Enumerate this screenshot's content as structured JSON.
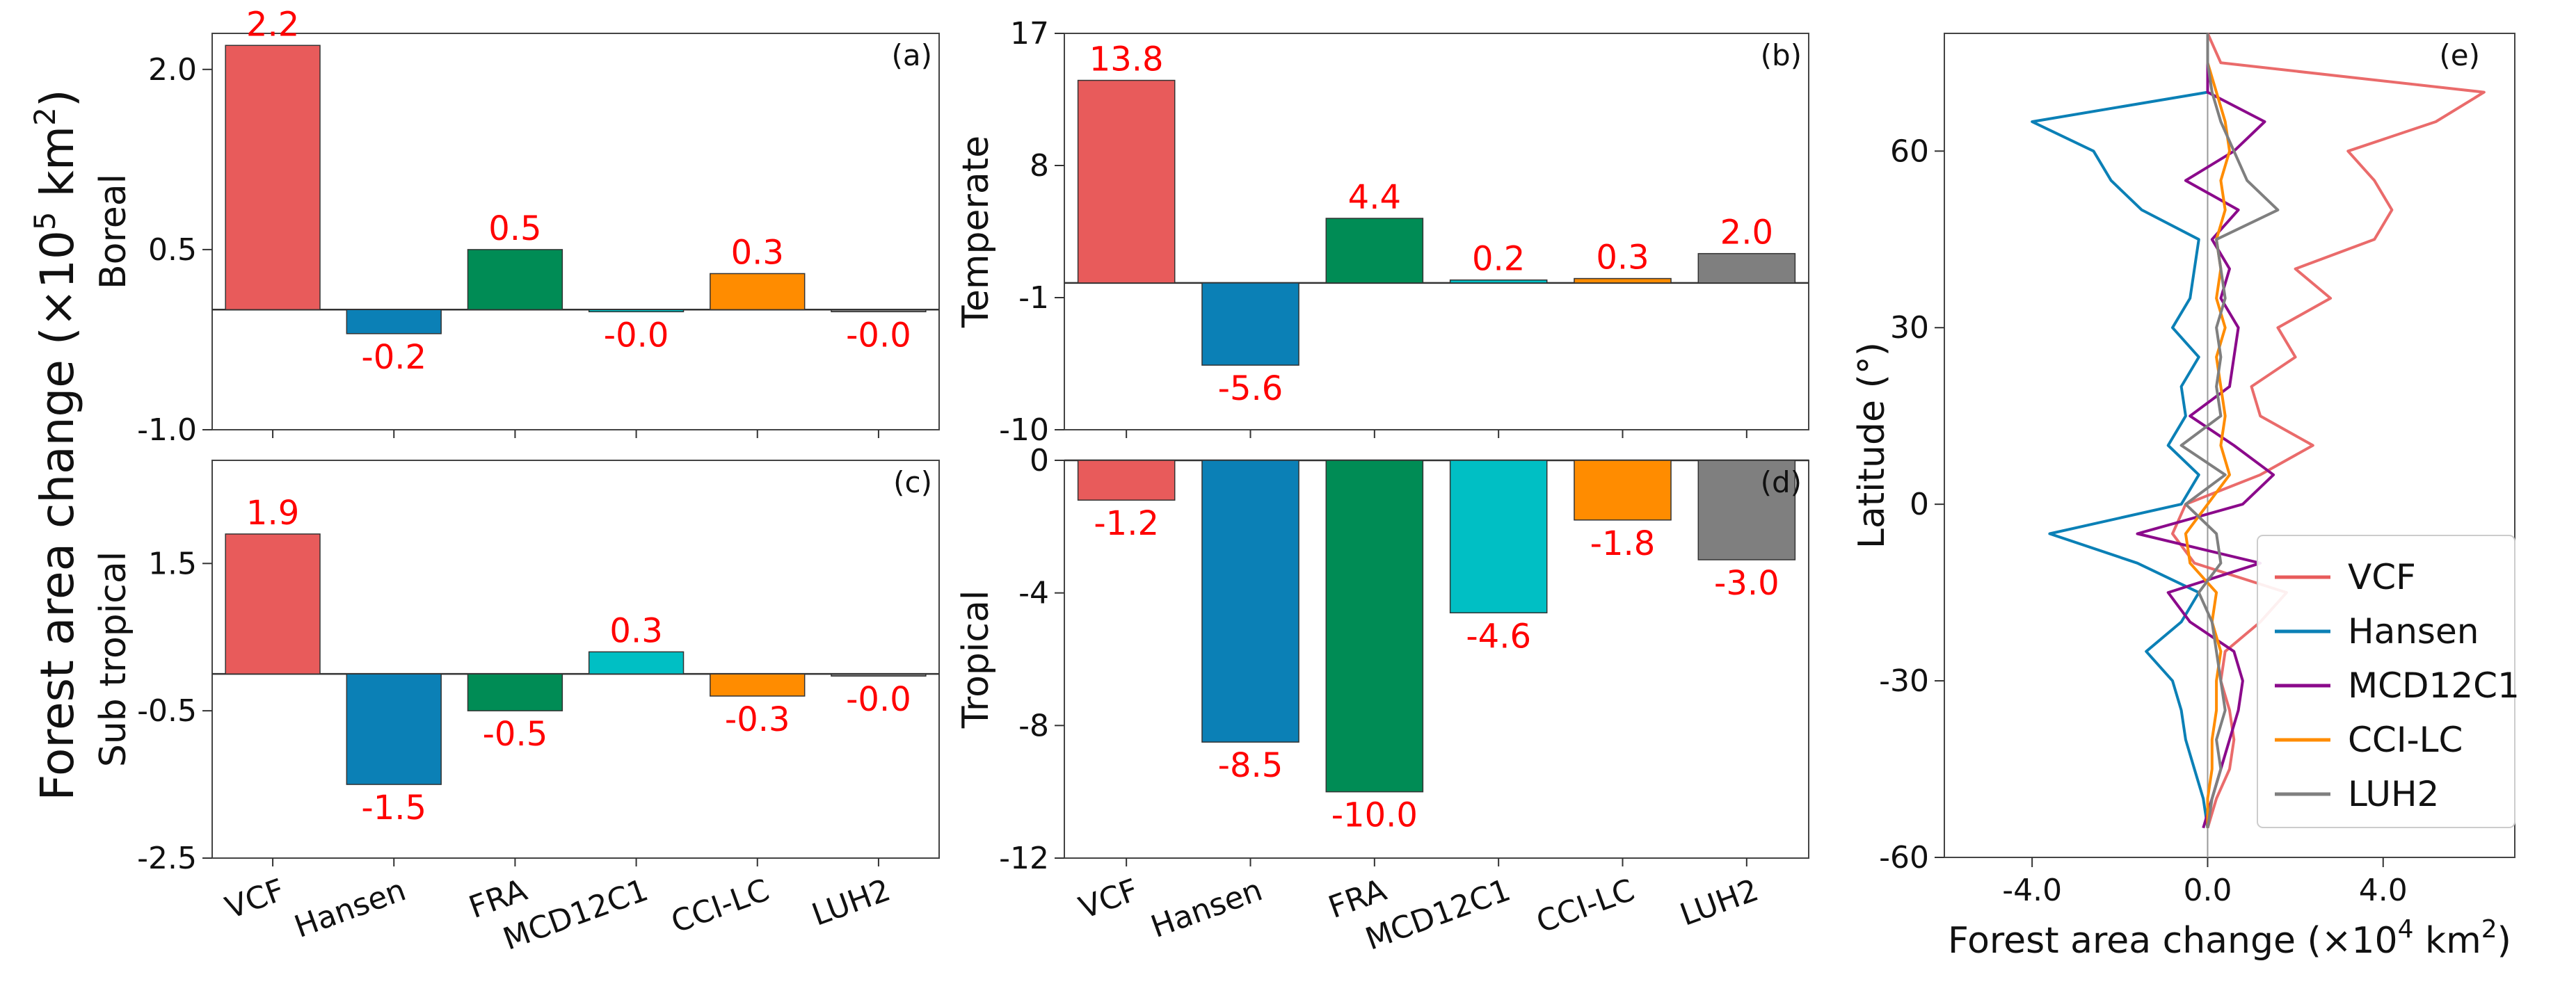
{
  "figure": {
    "shared_ylabel_text": "Forest area change (×10",
    "shared_ylabel_sup": "5",
    "shared_ylabel_unit": " km",
    "shared_ylabel_sup2": "2",
    "shared_ylabel_end": ")"
  },
  "colors": {
    "VCF": "#e85b5b",
    "Hansen": "#0b80b6",
    "FRA": "#008c55",
    "MCD12C1": "#00bfc4",
    "CCI-LC": "#ff8c00",
    "LUH2": "#7f7f7f",
    "MCD12C1_line": "#8b0a8b",
    "label_red": "#ff0000"
  },
  "chart_data": [
    {
      "id": "a",
      "type": "bar",
      "panel_letter": "(a)",
      "ylabel": "Boreal",
      "categories": [
        "VCF",
        "Hansen",
        "FRA",
        "MCD12C1",
        "CCI-LC",
        "LUH2"
      ],
      "values": [
        2.2,
        -0.2,
        0.5,
        -0.0,
        0.3,
        -0.0
      ],
      "labels": [
        "2.2",
        "-0.2",
        "0.5",
        "-0.0",
        "0.3",
        "-0.0"
      ],
      "ylim": [
        -1.0,
        2.3
      ],
      "yticks": [
        -1.0,
        0.5,
        2.0
      ],
      "ytick_labels": [
        "-1.0",
        "0.5",
        "2.0"
      ]
    },
    {
      "id": "b",
      "type": "bar",
      "panel_letter": "(b)",
      "ylabel": "Temperate",
      "categories": [
        "VCF",
        "Hansen",
        "FRA",
        "MCD12C1",
        "CCI-LC",
        "LUH2"
      ],
      "values": [
        13.8,
        -5.6,
        4.4,
        0.2,
        0.3,
        2.0
      ],
      "labels": [
        "13.8",
        "-5.6",
        "4.4",
        "0.2",
        "0.3",
        "2.0"
      ],
      "ylim": [
        -10,
        17
      ],
      "yticks": [
        -10,
        -1,
        8,
        17
      ],
      "ytick_labels": [
        "-10",
        "-1",
        "8",
        "17"
      ]
    },
    {
      "id": "c",
      "type": "bar",
      "panel_letter": "(c)",
      "ylabel": "Sub tropical",
      "categories": [
        "VCF",
        "Hansen",
        "FRA",
        "MCD12C1",
        "CCI-LC",
        "LUH2"
      ],
      "values": [
        1.9,
        -1.5,
        -0.5,
        0.3,
        -0.3,
        -0.0
      ],
      "labels": [
        "1.9",
        "-1.5",
        "-0.5",
        "0.3",
        "-0.3",
        "-0.0"
      ],
      "ylim": [
        -2.5,
        2.9
      ],
      "yticks": [
        -2.5,
        -0.5,
        1.5
      ],
      "ytick_labels": [
        "-2.5",
        "-0.5",
        "1.5"
      ],
      "xtick_labels": [
        "VCF",
        "Hansen",
        "FRA",
        "MCD12C1",
        "CCI-LC",
        "LUH2"
      ]
    },
    {
      "id": "d",
      "type": "bar",
      "panel_letter": "(d)",
      "ylabel": "Tropical",
      "categories": [
        "VCF",
        "Hansen",
        "FRA",
        "MCD12C1",
        "CCI-LC",
        "LUH2"
      ],
      "values": [
        -1.2,
        -8.5,
        -10.0,
        -4.6,
        -1.8,
        -3.0
      ],
      "labels": [
        "-1.2",
        "-8.5",
        "-10.0",
        "-4.6",
        "-1.8",
        "-3.0"
      ],
      "ylim": [
        -12,
        0
      ],
      "yticks": [
        -12,
        -8,
        -4,
        0
      ],
      "ytick_labels": [
        "-12",
        "-8",
        "-4",
        "0"
      ],
      "xtick_labels": [
        "VCF",
        "Hansen",
        "FRA",
        "MCD12C1",
        "CCI-LC",
        "LUH2"
      ]
    },
    {
      "id": "e",
      "type": "line",
      "panel_letter": "(e)",
      "xlabel_text": "Forest area change (×10",
      "xlabel_sup": "4",
      "xlabel_unit": " km",
      "xlabel_sup2": "2",
      "xlabel_end": ")",
      "ylabel": "Latitude (°)",
      "xlim": [
        -6.0,
        7.0
      ],
      "ylim": [
        -60,
        80
      ],
      "xticks": [
        -4.0,
        0.0,
        4.0
      ],
      "xtick_labels": [
        "-4.0",
        "0.0",
        "4.0"
      ],
      "yticks": [
        -60,
        -30,
        0,
        30,
        60
      ],
      "ytick_labels": [
        "-60",
        "-30",
        "0",
        "30",
        "60"
      ],
      "lat": [
        -55,
        -50,
        -45,
        -40,
        -35,
        -30,
        -25,
        -20,
        -15,
        -10,
        -5,
        0,
        5,
        10,
        15,
        20,
        25,
        30,
        35,
        40,
        45,
        50,
        55,
        60,
        65,
        70,
        75,
        80
      ],
      "series": [
        {
          "name": "VCF",
          "values": [
            0.0,
            0.2,
            0.5,
            0.6,
            0.5,
            0.3,
            0.4,
            1.2,
            1.8,
            -0.3,
            -0.8,
            -0.5,
            1.2,
            2.4,
            1.2,
            1.0,
            2.0,
            1.6,
            2.8,
            2.0,
            3.8,
            4.2,
            3.8,
            3.2,
            5.2,
            6.3,
            0.3,
            0.0
          ]
        },
        {
          "name": "Hansen",
          "values": [
            0.0,
            -0.1,
            -0.3,
            -0.5,
            -0.6,
            -0.8,
            -1.4,
            -0.6,
            -0.2,
            -1.6,
            -3.6,
            -0.6,
            -0.2,
            -0.9,
            -0.5,
            -0.6,
            -0.2,
            -0.8,
            -0.4,
            -0.3,
            -0.2,
            -1.5,
            -2.2,
            -2.6,
            -4.0,
            0.0,
            0.0,
            0.0
          ]
        },
        {
          "name": "MCD12C1",
          "values": [
            -0.1,
            0.1,
            0.3,
            0.5,
            0.7,
            0.8,
            0.6,
            -0.4,
            -0.9,
            1.2,
            -1.6,
            0.8,
            1.5,
            0.6,
            -0.4,
            0.5,
            0.6,
            0.7,
            0.3,
            0.5,
            0.1,
            0.7,
            -0.5,
            0.6,
            1.3,
            0.0,
            0.0,
            0.0
          ]
        },
        {
          "name": "CCI-LC",
          "values": [
            0.0,
            0.0,
            0.1,
            0.1,
            0.2,
            0.2,
            0.3,
            0.1,
            0.2,
            -0.4,
            -0.5,
            0.0,
            0.5,
            0.3,
            0.4,
            0.3,
            0.2,
            0.4,
            0.2,
            0.3,
            0.2,
            0.4,
            0.3,
            0.5,
            0.4,
            0.2,
            0.0,
            0.0
          ]
        },
        {
          "name": "LUH2",
          "values": [
            0.0,
            0.1,
            0.3,
            0.2,
            0.4,
            0.3,
            0.2,
            0.1,
            -0.2,
            0.3,
            0.2,
            -0.5,
            0.4,
            -0.6,
            0.3,
            0.2,
            0.3,
            0.2,
            0.4,
            0.3,
            0.2,
            1.6,
            0.9,
            0.6,
            0.3,
            0.1,
            0.0,
            0.0
          ]
        }
      ],
      "legend": [
        "VCF",
        "Hansen",
        "MCD12C1",
        "CCI-LC",
        "LUH2"
      ],
      "legend_position": "bottom-right"
    }
  ]
}
